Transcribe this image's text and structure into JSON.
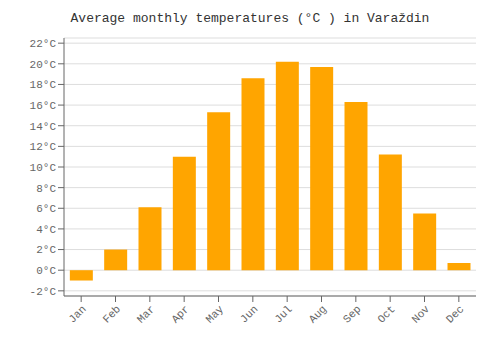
{
  "chart_data": {
    "type": "bar",
    "title": "Average monthly temperatures (°C ) in Varaždin",
    "categories": [
      "Jan",
      "Feb",
      "Mar",
      "Apr",
      "May",
      "Jun",
      "Jul",
      "Aug",
      "Sep",
      "Oct",
      "Nov",
      "Dec"
    ],
    "values": [
      -1.0,
      2.0,
      6.1,
      11.0,
      15.3,
      18.6,
      20.2,
      19.7,
      16.3,
      11.2,
      5.5,
      0.7
    ],
    "color": "#FFA500",
    "ylim": [
      -2.5,
      22.5
    ],
    "yticks": [
      {
        "value": -2,
        "label": "-2°C"
      },
      {
        "value": 0,
        "label": "0°C"
      },
      {
        "value": 2,
        "label": "2°C"
      },
      {
        "value": 4,
        "label": "4°C"
      },
      {
        "value": 6,
        "label": "6°C"
      },
      {
        "value": 8,
        "label": "8°C"
      },
      {
        "value": 10,
        "label": "10°C"
      },
      {
        "value": 12,
        "label": "12°C"
      },
      {
        "value": 14,
        "label": "14°C"
      },
      {
        "value": 16,
        "label": "16°C"
      },
      {
        "value": 18,
        "label": "18°C"
      },
      {
        "value": 20,
        "label": "20°C"
      },
      {
        "value": 22,
        "label": "22°C"
      }
    ],
    "grid": true
  }
}
